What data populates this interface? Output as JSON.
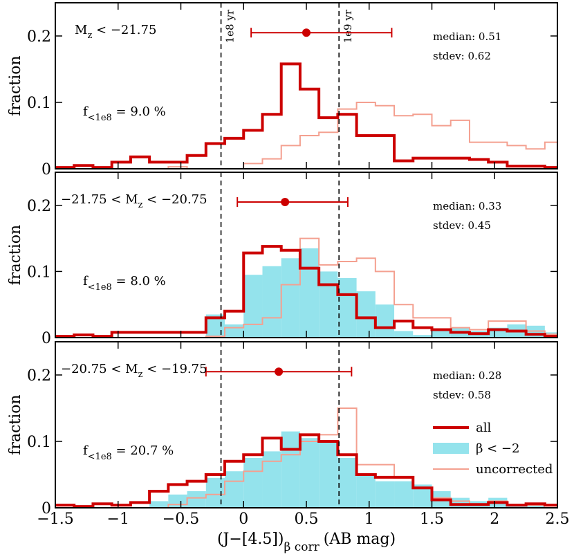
{
  "chart_data": {
    "type": "histogram",
    "xlabel_main": "(J−[4.5])",
    "xlabel_sub": "β corr",
    "xlabel_tail": "(AB mag)",
    "xlim": [
      -1.5,
      2.5
    ],
    "xticks": [
      "-1.5",
      "-1",
      "-0.5",
      "0",
      "0.5",
      "1",
      "1.5",
      "2",
      "2.5"
    ],
    "xtick_labels": [
      "−1.5",
      "−1",
      "−0.5",
      "0",
      "0.5",
      "1",
      "1.5",
      "2",
      "2.5"
    ],
    "ylabel": "fraction",
    "age_lines": [
      {
        "x": -0.18,
        "label": "1e8 yr"
      },
      {
        "x": 0.76,
        "label": "1e9 yr"
      }
    ],
    "colors": {
      "all": "#cc0000",
      "blue": "#94e3ec",
      "uncorrected": "#f4a090"
    },
    "legend": {
      "all": "all",
      "blue": "β < −2",
      "uncorrected": "uncorrected"
    },
    "panels": [
      {
        "mag_label": "M",
        "mag_sub": "z",
        "mag_tail": " < −21.75",
        "mag_pre": "",
        "frac_label": "f",
        "frac_sub": "<1e8",
        "frac_value": " = 9.0 %",
        "median_text": "median: 0.51",
        "stdev_text": "stdev: 0.62",
        "point": {
          "x": 0.5,
          "y": 0.205,
          "xerr_low": 0.06,
          "xerr_high": 1.18
        },
        "ylim": [
          0,
          0.25
        ],
        "yticks": [
          {
            "v": 0,
            "label": "0"
          },
          {
            "v": 0.1,
            "label": "0.1"
          },
          {
            "v": 0.2,
            "label": "0.2"
          }
        ],
        "edges": [
          -1.5,
          -1.35,
          -1.2,
          -1.05,
          -0.9,
          -0.75,
          -0.6,
          -0.45,
          -0.3,
          -0.15,
          0.0,
          0.15,
          0.3,
          0.45,
          0.6,
          0.75,
          0.9,
          1.05,
          1.2,
          1.35,
          1.5,
          1.65,
          1.8,
          1.95,
          2.1,
          2.25,
          2.4,
          2.5
        ],
        "all": [
          0.002,
          0.005,
          0.002,
          0.01,
          0.018,
          0.01,
          0.01,
          0.02,
          0.038,
          0.046,
          0.058,
          0.082,
          0.158,
          0.12,
          0.077,
          0.082,
          0.05,
          0.05,
          0.012,
          0.016,
          0.016,
          0.016,
          0.014,
          0.01,
          0.004,
          0.004,
          0.002
        ],
        "uncorrected": [
          0,
          0,
          0,
          0,
          0,
          0,
          0.003,
          0,
          0,
          0,
          0.008,
          0.015,
          0.035,
          0.05,
          0.055,
          0.09,
          0.1,
          0.095,
          0.08,
          0.082,
          0.065,
          0.073,
          0.04,
          0.04,
          0.035,
          0.03,
          0.04
        ],
        "blue": null
      },
      {
        "mag_pre": "−21.75 < ",
        "mag_label": "M",
        "mag_sub": "z",
        "mag_tail": " < −20.75",
        "frac_label": "f",
        "frac_sub": "<1e8",
        "frac_value": " = 8.0 %",
        "median_text": "median: 0.33",
        "stdev_text": "stdev: 0.45",
        "point": {
          "x": 0.33,
          "y": 0.205,
          "xerr_low": -0.05,
          "xerr_high": 0.83
        },
        "ylim": [
          0,
          0.25
        ],
        "yticks": [
          {
            "v": 0,
            "label": "0"
          },
          {
            "v": 0.1,
            "label": "0.1"
          },
          {
            "v": 0.2,
            "label": "0.2"
          }
        ],
        "edges": [
          -1.5,
          -1.35,
          -1.2,
          -1.05,
          -0.9,
          -0.75,
          -0.6,
          -0.45,
          -0.3,
          -0.15,
          0.0,
          0.15,
          0.3,
          0.45,
          0.6,
          0.75,
          0.9,
          1.05,
          1.2,
          1.35,
          1.5,
          1.65,
          1.8,
          1.95,
          2.1,
          2.25,
          2.4,
          2.5
        ],
        "all": [
          0.002,
          0.004,
          0.002,
          0.008,
          0.008,
          0.008,
          0.008,
          0.008,
          0.03,
          0.04,
          0.128,
          0.138,
          0.132,
          0.105,
          0.08,
          0.065,
          0.03,
          0.015,
          0.025,
          0.015,
          0.012,
          0.008,
          0.006,
          0.012,
          0.01,
          0.005,
          0.002
        ],
        "blue": [
          0,
          0,
          0,
          0,
          0,
          0,
          0,
          0,
          0.035,
          0.02,
          0.095,
          0.108,
          0.12,
          0.135,
          0.1,
          0.09,
          0.07,
          0.05,
          0.01,
          0.004,
          0.01,
          0.015,
          0.01,
          0.015,
          0.02,
          0.018,
          0.008
        ],
        "uncorrected": [
          0,
          0,
          0,
          0,
          0,
          0,
          0,
          0,
          0.002,
          0.015,
          0.02,
          0.03,
          0.08,
          0.15,
          0.11,
          0.115,
          0.12,
          0.1,
          0.05,
          0.03,
          0.03,
          0.015,
          0.012,
          0.025,
          0.025,
          0.01,
          0.005
        ]
      },
      {
        "mag_pre": "−20.75 < ",
        "mag_label": "M",
        "mag_sub": "z",
        "mag_tail": " < −19.75",
        "frac_label": "f",
        "frac_sub": "<1e8",
        "frac_value": " = 20.7 %",
        "median_text": "median: 0.28",
        "stdev_text": "stdev: 0.58",
        "point": {
          "x": 0.28,
          "y": 0.205,
          "xerr_low": -0.3,
          "xerr_high": 0.86
        },
        "ylim": [
          0,
          0.25
        ],
        "yticks": [
          {
            "v": 0,
            "label": "0"
          },
          {
            "v": 0.1,
            "label": "0.1"
          },
          {
            "v": 0.2,
            "label": "0.2"
          }
        ],
        "edges": [
          -1.5,
          -1.35,
          -1.2,
          -1.05,
          -0.9,
          -0.75,
          -0.6,
          -0.45,
          -0.3,
          -0.15,
          0.0,
          0.15,
          0.3,
          0.45,
          0.6,
          0.75,
          0.9,
          1.05,
          1.2,
          1.35,
          1.5,
          1.65,
          1.8,
          1.95,
          2.1,
          2.25,
          2.4,
          2.5
        ],
        "all": [
          0.004,
          0.002,
          0.006,
          0.004,
          0.008,
          0.025,
          0.035,
          0.04,
          0.05,
          0.07,
          0.08,
          0.105,
          0.088,
          0.11,
          0.1,
          0.08,
          0.05,
          0.046,
          0.046,
          0.03,
          0.012,
          0.005,
          0.005,
          0.008,
          0.004,
          0.006,
          0.004
        ],
        "blue": [
          0,
          0,
          0,
          0,
          0,
          0.01,
          0.02,
          0.025,
          0.045,
          0.055,
          0.075,
          0.085,
          0.115,
          0.105,
          0.1,
          0.075,
          0.05,
          0.04,
          0.04,
          0.035,
          0.025,
          0.015,
          0.01,
          0.015,
          0.005,
          0.005,
          0
        ],
        "uncorrected": [
          0,
          0,
          0,
          0,
          0,
          0,
          0.005,
          0.015,
          0.02,
          0.04,
          0.055,
          0.07,
          0.08,
          0.1,
          0.11,
          0.15,
          0.065,
          0.065,
          0.045,
          0.03,
          0.015,
          0.01,
          0.005,
          0.01,
          0.004,
          0.004,
          0.003
        ]
      }
    ]
  }
}
